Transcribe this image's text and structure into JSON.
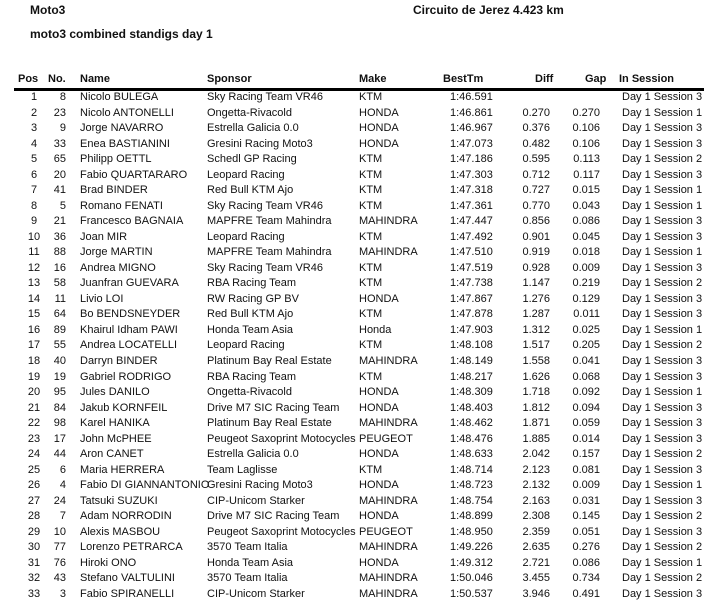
{
  "header": {
    "series": "Moto3",
    "circuit": "Circuito de Jerez 4.423 km",
    "subtitle": "moto3 combined standigs day 1"
  },
  "columns": {
    "pos": "Pos",
    "no": "No.",
    "name": "Name",
    "sponsor": "Sponsor",
    "make": "Make",
    "best": "BestTm",
    "diff": "Diff",
    "gap": "Gap",
    "session": "In Session"
  },
  "rows": [
    [
      "1",
      "8",
      "Nicolo  BULEGA",
      "Sky Racing Team VR46",
      "KTM",
      "1:46.591",
      "",
      "",
      "Day 1 Session 3"
    ],
    [
      "2",
      "23",
      "Nicolo ANTONELLI",
      "Ongetta-Rivacold",
      "HONDA",
      "1:46.861",
      "0.270",
      "0.270",
      "Day 1 Session 1"
    ],
    [
      "3",
      "9",
      "Jorge NAVARRO",
      "Estrella Galicia 0.0",
      "HONDA",
      "1:46.967",
      "0.376",
      "0.106",
      "Day 1 Session 3"
    ],
    [
      "4",
      "33",
      "Enea BASTIANINI",
      "Gresini Racing Moto3",
      "HONDA",
      "1:47.073",
      "0.482",
      "0.106",
      "Day 1 Session 3"
    ],
    [
      "5",
      "65",
      "Philipp OETTL",
      "Schedl GP Racing",
      "KTM",
      "1:47.186",
      "0.595",
      "0.113",
      "Day 1 Session 2"
    ],
    [
      "6",
      "20",
      "Fabio QUARTARARO",
      "Leopard Racing",
      "KTM",
      "1:47.303",
      "0.712",
      "0.117",
      "Day 1 Session 3"
    ],
    [
      "7",
      "41",
      "Brad BINDER",
      "Red Bull KTM Ajo",
      "KTM",
      "1:47.318",
      "0.727",
      "0.015",
      "Day 1 Session 1"
    ],
    [
      "8",
      "5",
      "Romano FENATI",
      "Sky Racing Team VR46",
      "KTM",
      "1:47.361",
      "0.770",
      "0.043",
      "Day 1 Session 1"
    ],
    [
      "9",
      "21",
      "Francesco BAGNAIA",
      "MAPFRE Team Mahindra",
      "MAHINDRA",
      "1:47.447",
      "0.856",
      "0.086",
      "Day 1 Session 3"
    ],
    [
      "10",
      "36",
      "Joan MIR",
      "Leopard Racing",
      "KTM",
      "1:47.492",
      "0.901",
      "0.045",
      "Day 1 Session 3"
    ],
    [
      "11",
      "88",
      "Jorge MARTIN",
      "MAPFRE Team Mahindra",
      "MAHINDRA",
      "1:47.510",
      "0.919",
      "0.018",
      "Day 1 Session 1"
    ],
    [
      "12",
      "16",
      "Andrea MIGNO",
      "Sky Racing Team VR46",
      "KTM",
      "1:47.519",
      "0.928",
      "0.009",
      "Day 1 Session 3"
    ],
    [
      "13",
      "58",
      "Juanfran GUEVARA",
      "RBA Racing Team",
      "KTM",
      "1:47.738",
      "1.147",
      "0.219",
      "Day 1 Session 2"
    ],
    [
      "14",
      "11",
      "Livio LOI",
      "RW Racing GP BV",
      "HONDA",
      "1:47.867",
      "1.276",
      "0.129",
      "Day 1 Session 3"
    ],
    [
      "15",
      "64",
      "Bo BENDSNEYDER",
      "Red Bull KTM Ajo",
      "KTM",
      "1:47.878",
      "1.287",
      "0.011",
      "Day 1 Session 3"
    ],
    [
      "16",
      "89",
      "Khairul Idham PAWI",
      "Honda Team Asia",
      "Honda",
      "1:47.903",
      "1.312",
      "0.025",
      "Day 1 Session 1"
    ],
    [
      "17",
      "55",
      "Andrea LOCATELLI",
      "Leopard Racing",
      "KTM",
      "1:48.108",
      "1.517",
      "0.205",
      "Day 1 Session 2"
    ],
    [
      "18",
      "40",
      "Darryn  BINDER",
      "Platinum Bay Real Estate",
      "MAHINDRA",
      "1:48.149",
      "1.558",
      "0.041",
      "Day 1 Session 3"
    ],
    [
      "19",
      "19",
      "Gabriel RODRIGO",
      "RBA Racing Team",
      "KTM",
      "1:48.217",
      "1.626",
      "0.068",
      "Day 1 Session 3"
    ],
    [
      "20",
      "95",
      "Jules DANILO",
      "Ongetta-Rivacold",
      "HONDA",
      "1:48.309",
      "1.718",
      "0.092",
      "Day 1 Session 1"
    ],
    [
      "21",
      "84",
      "Jakub KORNFEIL",
      "Drive M7 SIC Racing Team",
      "HONDA",
      "1:48.403",
      "1.812",
      "0.094",
      "Day 1 Session 3"
    ],
    [
      "22",
      "98",
      "Karel HANIKA",
      "Platinum Bay Real Estate",
      "MAHINDRA",
      "1:48.462",
      "1.871",
      "0.059",
      "Day 1 Session 3"
    ],
    [
      "23",
      "17",
      "John  McPHEE",
      "Peugeot Saxoprint Motocycles",
      "PEUGEOT",
      "1:48.476",
      "1.885",
      "0.014",
      "Day 1 Session 3"
    ],
    [
      "24",
      "44",
      "Aron CANET",
      "Estrella Galicia 0.0",
      "HONDA",
      "1:48.633",
      "2.042",
      "0.157",
      "Day 1 Session 2"
    ],
    [
      "25",
      "6",
      "Maria HERRERA",
      "Team Laglisse",
      "KTM",
      "1:48.714",
      "2.123",
      "0.081",
      "Day 1 Session 3"
    ],
    [
      "26",
      "4",
      "Fabio DI GIANNANTONIO",
      "Gresini Racing Moto3",
      "HONDA",
      "1:48.723",
      "2.132",
      "0.009",
      "Day 1 Session 1"
    ],
    [
      "27",
      "24",
      "Tatsuki  SUZUKI",
      "CIP-Unicom Starker",
      "MAHINDRA",
      "1:48.754",
      "2.163",
      "0.031",
      "Day 1 Session 3"
    ],
    [
      "28",
      "7",
      "Adam NORRODIN",
      "Drive M7 SIC Racing Team",
      "HONDA",
      "1:48.899",
      "2.308",
      "0.145",
      "Day 1 Session 2"
    ],
    [
      "29",
      "10",
      "Alexis MASBOU",
      "Peugeot Saxoprint Motocycles",
      "PEUGEOT",
      "1:48.950",
      "2.359",
      "0.051",
      "Day 1 Session 3"
    ],
    [
      "30",
      "77",
      "Lorenzo PETRARCA",
      "3570 Team Italia",
      "MAHINDRA",
      "1:49.226",
      "2.635",
      "0.276",
      "Day 1 Session 2"
    ],
    [
      "31",
      "76",
      "Hiroki ONO",
      "Honda Team Asia",
      "HONDA",
      "1:49.312",
      "2.721",
      "0.086",
      "Day 1 Session 1"
    ],
    [
      "32",
      "43",
      "Stefano VALTULINI",
      "3570 Team Italia",
      "MAHINDRA",
      "1:50.046",
      "3.455",
      "0.734",
      "Day 1 Session 2"
    ],
    [
      "33",
      "3",
      "Fabio SPIRANELLI",
      "CIP-Unicom Starker",
      "MAHINDRA",
      "1:50.537",
      "3.946",
      "0.491",
      "Day 1 Session 3"
    ]
  ]
}
